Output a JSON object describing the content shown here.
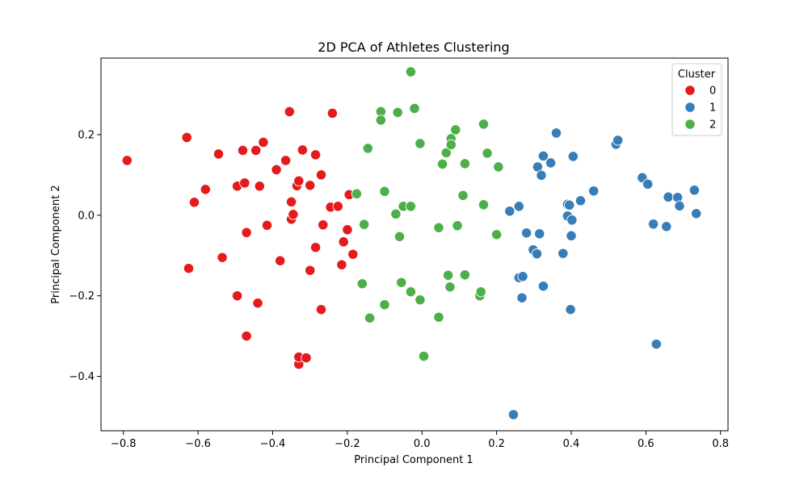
{
  "chart_data": {
    "type": "scatter",
    "title": "2D PCA of Athletes Clustering",
    "xlabel": "Principal Component 1",
    "ylabel": "Principal Component 2",
    "xlim": [
      -0.86,
      0.82
    ],
    "ylim": [
      -0.535,
      0.39
    ],
    "xticks": [
      -0.8,
      -0.6,
      -0.4,
      -0.2,
      0.0,
      0.2,
      0.4,
      0.6,
      0.8
    ],
    "xtick_labels": [
      "−0.8",
      "−0.6",
      "−0.4",
      "−0.2",
      "0.0",
      "0.2",
      "0.4",
      "0.6",
      "0.8"
    ],
    "yticks": [
      -0.4,
      -0.2,
      0.0,
      0.2
    ],
    "ytick_labels": [
      "−0.4",
      "−0.2",
      "0.0",
      "0.2"
    ],
    "grid": false,
    "legend": {
      "title": "Cluster",
      "placement": "top-right"
    },
    "series": [
      {
        "name": "0",
        "color": "#e41a1c",
        "points": [
          [
            -0.79,
            0.136
          ],
          [
            -0.63,
            0.193
          ],
          [
            -0.625,
            -0.132
          ],
          [
            -0.61,
            0.032
          ],
          [
            -0.58,
            0.064
          ],
          [
            -0.545,
            0.152
          ],
          [
            -0.535,
            -0.105
          ],
          [
            -0.495,
            0.072
          ],
          [
            -0.495,
            -0.2
          ],
          [
            -0.48,
            0.161
          ],
          [
            -0.475,
            0.08
          ],
          [
            -0.47,
            -0.043
          ],
          [
            -0.47,
            -0.3
          ],
          [
            -0.445,
            0.161
          ],
          [
            -0.44,
            -0.218
          ],
          [
            -0.435,
            0.072
          ],
          [
            -0.425,
            0.181
          ],
          [
            -0.415,
            -0.025
          ],
          [
            -0.39,
            0.113
          ],
          [
            -0.38,
            -0.113
          ],
          [
            -0.365,
            0.136
          ],
          [
            -0.355,
            0.257
          ],
          [
            -0.35,
            -0.01
          ],
          [
            -0.35,
            0.033
          ],
          [
            -0.345,
            0.002
          ],
          [
            -0.335,
            0.073
          ],
          [
            -0.33,
            0.085
          ],
          [
            -0.33,
            -0.37
          ],
          [
            -0.33,
            -0.352
          ],
          [
            -0.32,
            0.162
          ],
          [
            -0.31,
            -0.354
          ],
          [
            -0.3,
            0.074
          ],
          [
            -0.3,
            -0.137
          ],
          [
            -0.285,
            -0.08
          ],
          [
            -0.285,
            0.15
          ],
          [
            -0.27,
            -0.234
          ],
          [
            -0.27,
            0.1
          ],
          [
            -0.265,
            -0.024
          ],
          [
            -0.24,
            0.253
          ],
          [
            -0.245,
            0.02
          ],
          [
            -0.225,
            0.022
          ],
          [
            -0.215,
            -0.123
          ],
          [
            -0.21,
            -0.066
          ],
          [
            -0.2,
            -0.036
          ],
          [
            -0.195,
            0.051
          ],
          [
            -0.185,
            -0.097
          ]
        ]
      },
      {
        "name": "1",
        "color": "#377eb8",
        "points": [
          [
            0.245,
            -0.495
          ],
          [
            0.235,
            0.01
          ],
          [
            0.26,
            0.022
          ],
          [
            0.26,
            -0.155
          ],
          [
            0.268,
            -0.205
          ],
          [
            0.27,
            -0.152
          ],
          [
            0.28,
            -0.044
          ],
          [
            0.298,
            -0.086
          ],
          [
            0.308,
            -0.096
          ],
          [
            0.31,
            0.12
          ],
          [
            0.315,
            -0.046
          ],
          [
            0.32,
            0.099
          ],
          [
            0.325,
            0.147
          ],
          [
            0.325,
            -0.176
          ],
          [
            0.345,
            0.13
          ],
          [
            0.36,
            0.204
          ],
          [
            0.378,
            -0.095
          ],
          [
            0.39,
            0.027
          ],
          [
            0.39,
            -0.002
          ],
          [
            0.395,
            0.025
          ],
          [
            0.398,
            -0.234
          ],
          [
            0.4,
            -0.051
          ],
          [
            0.402,
            -0.012
          ],
          [
            0.405,
            0.146
          ],
          [
            0.425,
            0.036
          ],
          [
            0.46,
            0.06
          ],
          [
            0.52,
            0.176
          ],
          [
            0.525,
            0.186
          ],
          [
            0.59,
            0.093
          ],
          [
            0.605,
            0.077
          ],
          [
            0.62,
            -0.022
          ],
          [
            0.628,
            -0.32
          ],
          [
            0.655,
            -0.028
          ],
          [
            0.66,
            0.045
          ],
          [
            0.685,
            0.044
          ],
          [
            0.69,
            0.023
          ],
          [
            0.73,
            0.062
          ],
          [
            0.735,
            0.004
          ]
        ]
      },
      {
        "name": "2",
        "color": "#4daf4a",
        "points": [
          [
            -0.175,
            0.053
          ],
          [
            -0.16,
            -0.17
          ],
          [
            -0.155,
            -0.023
          ],
          [
            -0.145,
            0.166
          ],
          [
            -0.14,
            -0.255
          ],
          [
            -0.11,
            0.257
          ],
          [
            -0.11,
            0.236
          ],
          [
            -0.1,
            0.059
          ],
          [
            -0.1,
            -0.222
          ],
          [
            -0.07,
            0.003
          ],
          [
            -0.065,
            0.255
          ],
          [
            -0.06,
            -0.053
          ],
          [
            -0.055,
            -0.167
          ],
          [
            -0.05,
            0.022
          ],
          [
            -0.03,
            0.022
          ],
          [
            -0.03,
            0.356
          ],
          [
            -0.03,
            -0.19
          ],
          [
            -0.02,
            0.265
          ],
          [
            -0.005,
            0.178
          ],
          [
            -0.005,
            -0.21
          ],
          [
            0.005,
            -0.35
          ],
          [
            0.045,
            -0.031
          ],
          [
            0.045,
            -0.253
          ],
          [
            0.055,
            0.127
          ],
          [
            0.065,
            0.155
          ],
          [
            0.07,
            -0.149
          ],
          [
            0.075,
            -0.178
          ],
          [
            0.078,
            0.19
          ],
          [
            0.078,
            0.175
          ],
          [
            0.09,
            0.212
          ],
          [
            0.095,
            -0.026
          ],
          [
            0.11,
            0.049
          ],
          [
            0.115,
            0.128
          ],
          [
            0.115,
            -0.148
          ],
          [
            0.155,
            -0.2
          ],
          [
            0.158,
            -0.19
          ],
          [
            0.165,
            0.226
          ],
          [
            0.165,
            0.026
          ],
          [
            0.175,
            0.154
          ],
          [
            0.2,
            -0.048
          ],
          [
            0.205,
            0.12
          ]
        ]
      }
    ]
  }
}
